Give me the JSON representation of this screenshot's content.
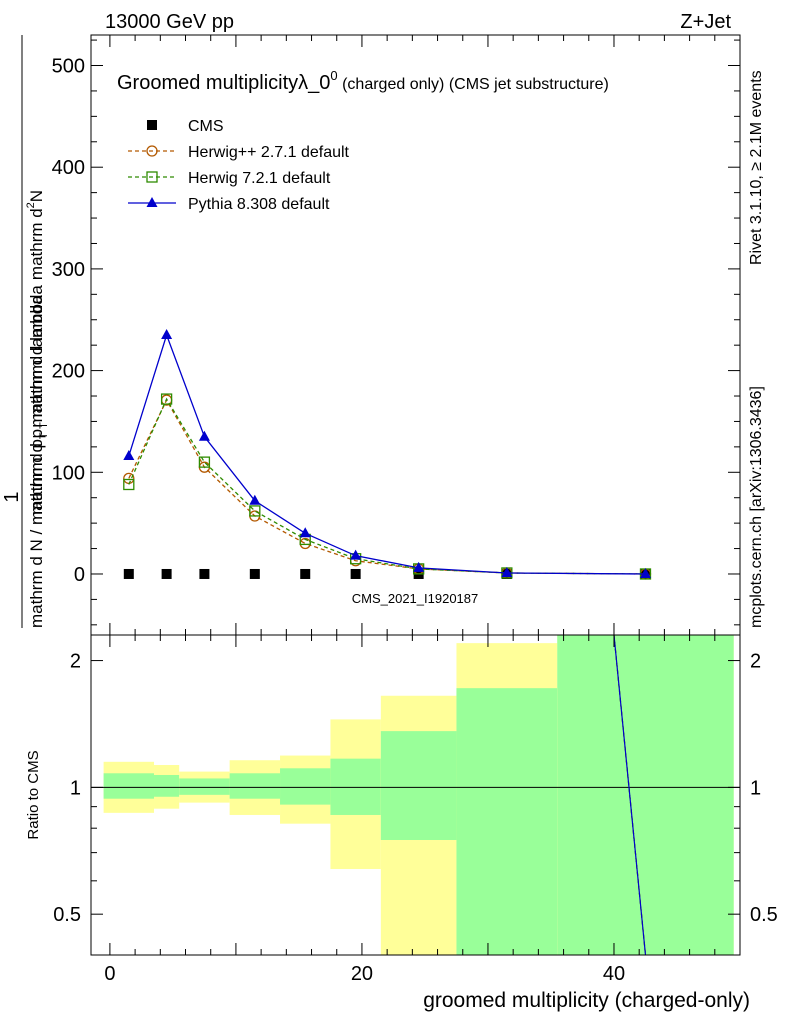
{
  "header": {
    "left": "13000 GeV pp",
    "right": "Z+Jet"
  },
  "side_labels": {
    "rivet": "Rivet 3.1.10, ≥ 2.1M events",
    "mcplots": "mcplots.cern.ch [arXiv:1306.3436]"
  },
  "chart_data": [
    {
      "type": "line",
      "title_main": "Groomed multiplicity",
      "title_lambda": "λ_0",
      "title_sup": "0",
      "title_rest": " (charged only) (CMS jet substructure)",
      "ylabel_line1": "mathrm d",
      "ylabel_line1_sup": "2",
      "ylabel_line1_end": "N",
      "ylabel_line2": "mathrm d p",
      "ylabel_line2_sub": "T",
      "ylabel_line2_end": " mathrm d lambda",
      "ylabel_prefix": "1",
      "ylabel_denom": "mathrm d N / mathrm d p",
      "ylabel_denom_sub": "T",
      "ylabel_denom_end": " mathrm d lambda",
      "watermark": "CMS_2021_I1920187",
      "xlim": [
        -1.5,
        50
      ],
      "ylim": [
        -60,
        530
      ],
      "yticks": [
        0,
        100,
        200,
        300,
        400,
        500
      ],
      "series": [
        {
          "name": "CMS",
          "color": "#000000",
          "marker": "square",
          "x": [
            1.5,
            4.5,
            7.5,
            11.5,
            15.5,
            19.5,
            24.5,
            31.5,
            42.5
          ],
          "y": [
            0,
            0,
            0,
            0,
            0,
            0,
            0,
            0,
            0
          ]
        },
        {
          "name": "Herwig++ 2.7.1 default",
          "color": "#b35900",
          "marker": "circle",
          "dashed": true,
          "x": [
            1.5,
            4.5,
            7.5,
            11.5,
            15.5,
            19.5,
            24.5,
            31.5,
            42.5
          ],
          "y": [
            94,
            171,
            105,
            57,
            30,
            13,
            5,
            1,
            0
          ]
        },
        {
          "name": "Herwig 7.2.1 default",
          "color": "#2e8b00",
          "marker": "square-open",
          "dashed": true,
          "x": [
            1.5,
            4.5,
            7.5,
            11.5,
            15.5,
            19.5,
            24.5,
            31.5,
            42.5
          ],
          "y": [
            88,
            172,
            110,
            62,
            34,
            15,
            5,
            1,
            0
          ]
        },
        {
          "name": "Pythia 8.308 default",
          "color": "#0000cc",
          "marker": "triangle",
          "dashed": false,
          "x": [
            1.5,
            4.5,
            7.5,
            11.5,
            15.5,
            19.5,
            24.5,
            31.5,
            42.5
          ],
          "y": [
            116,
            235,
            135,
            72,
            40,
            18,
            6,
            1,
            0
          ]
        }
      ]
    },
    {
      "type": "area",
      "ylabel": "Ratio to CMS",
      "xlabel": "groomed multiplicity (charged-only)",
      "xlim": [
        -1.5,
        50
      ],
      "ylim": [
        0.4,
        2.3
      ],
      "log_y": true,
      "xticks": [
        0,
        20,
        40
      ],
      "yticks": [
        0.5,
        1,
        2
      ],
      "bands": [
        {
          "x0": -0.5,
          "x1": 3.5,
          "stat_lo": 0.94,
          "stat_hi": 1.08,
          "tot_lo": 0.87,
          "tot_hi": 1.15
        },
        {
          "x0": 3.5,
          "x1": 5.5,
          "stat_lo": 0.95,
          "stat_hi": 1.07,
          "tot_lo": 0.89,
          "tot_hi": 1.13
        },
        {
          "x0": 5.5,
          "x1": 9.5,
          "stat_lo": 0.96,
          "stat_hi": 1.05,
          "tot_lo": 0.92,
          "tot_hi": 1.09
        },
        {
          "x0": 9.5,
          "x1": 13.5,
          "stat_lo": 0.94,
          "stat_hi": 1.08,
          "tot_lo": 0.86,
          "tot_hi": 1.16
        },
        {
          "x0": 13.5,
          "x1": 17.5,
          "stat_lo": 0.91,
          "stat_hi": 1.11,
          "tot_lo": 0.82,
          "tot_hi": 1.19
        },
        {
          "x0": 17.5,
          "x1": 21.5,
          "stat_lo": 0.86,
          "stat_hi": 1.17,
          "tot_lo": 0.64,
          "tot_hi": 1.45
        },
        {
          "x0": 21.5,
          "x1": 27.5,
          "stat_lo": 0.75,
          "stat_hi": 1.36,
          "tot_lo": 0.4,
          "tot_hi": 1.65
        },
        {
          "x0": 27.5,
          "x1": 35.5,
          "stat_lo": 0.4,
          "stat_hi": 1.72,
          "tot_lo": 0.4,
          "tot_hi": 2.2
        },
        {
          "x0": 35.5,
          "x1": 49.5,
          "stat_lo": 0.4,
          "stat_hi": 2.3,
          "tot_lo": 0.4,
          "tot_hi": 2.3
        }
      ],
      "ratio_lines": [
        {
          "name": "Herwig++ 2.7.1 default",
          "color": "#b35900",
          "dashed": true,
          "x": [
            40.0,
            42.5
          ],
          "y": [
            2.3,
            0.4
          ]
        },
        {
          "name": "Herwig 7.2.1 default",
          "color": "#2e8b00",
          "dashed": true,
          "x": [
            40.0,
            42.5
          ],
          "y": [
            2.3,
            0.4
          ]
        },
        {
          "name": "Pythia 8.308 default",
          "color": "#0000cc",
          "dashed": false,
          "x": [
            40.0,
            42.5
          ],
          "y": [
            2.3,
            0.4
          ]
        }
      ],
      "colors": {
        "stat": "#99ff99",
        "tot": "#ffff99"
      }
    }
  ]
}
